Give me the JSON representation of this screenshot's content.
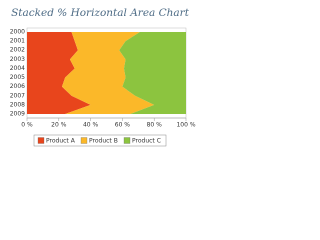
{
  "chart_data": {
    "type": "stacked-percent-horizontal-area",
    "title": "Stacked % Horizontal Area Chart",
    "categories": [
      "2000",
      "2001",
      "2002",
      "2003",
      "2004",
      "2005",
      "2006",
      "2007",
      "2008",
      "2009"
    ],
    "series": [
      {
        "name": "Product A",
        "color": "#e8451c",
        "values": [
          28,
          30,
          32,
          27,
          30,
          24,
          22,
          28,
          40,
          24
        ]
      },
      {
        "name": "Product B",
        "color": "#fbb829",
        "values": [
          43,
          32,
          26,
          35,
          31,
          38,
          38,
          40,
          40,
          41
        ]
      },
      {
        "name": "Product C",
        "color": "#8cc43f",
        "values": [
          29,
          38,
          42,
          38,
          39,
          38,
          40,
          32,
          20,
          35
        ]
      }
    ],
    "xlim": [
      0,
      100
    ],
    "xticks": [
      {
        "value": 0,
        "label": "0 %"
      },
      {
        "value": 20,
        "label": "20 %"
      },
      {
        "value": 40,
        "label": "40 %"
      },
      {
        "value": 60,
        "label": "60 %"
      },
      {
        "value": 80,
        "label": "80 %"
      },
      {
        "value": 100,
        "label": "100 %"
      }
    ],
    "legend": "bottom"
  }
}
